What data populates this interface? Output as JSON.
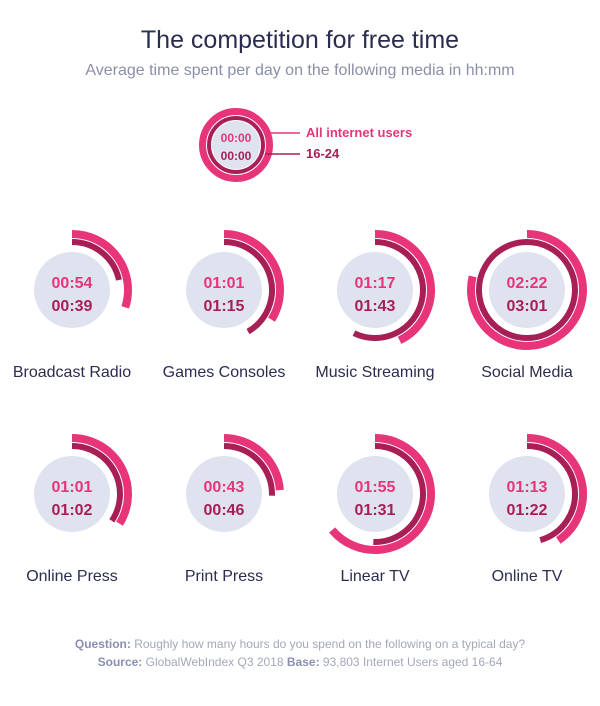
{
  "title": "The competition for free time",
  "subtitle": "Average time spent per day on the following media in hh:mm",
  "colors": {
    "all_users": "#e8357a",
    "age_16_24": "#a81f56",
    "disc": "#dfe3ef",
    "text": "#2a2d4f"
  },
  "legend": {
    "sample_top": "00:00",
    "sample_bottom": "00:00",
    "all_users_label": "All internet users",
    "age_label": "16-24"
  },
  "footer": {
    "question_label": "Question:",
    "question_text": "Roughly how many hours do you spend on the following on a typical day?",
    "source_label": "Source:",
    "source_text": "GlobalWebIndex Q3 2018",
    "base_label": "Base:",
    "base_text": "93,803 Internet Users aged 16-64"
  },
  "chart_data": {
    "type": "radial-bar",
    "full_circle_minutes": 180,
    "series": [
      {
        "name": "All internet users",
        "ring": "outer"
      },
      {
        "name": "16-24",
        "ring": "inner"
      }
    ],
    "categories": [
      {
        "name": "Broadcast Radio",
        "all": "00:54",
        "age": "00:39"
      },
      {
        "name": "Games Consoles",
        "all": "01:01",
        "age": "01:15"
      },
      {
        "name": "Music Streaming",
        "all": "01:17",
        "age": "01:43"
      },
      {
        "name": "Social Media",
        "all": "02:22",
        "age": "03:01"
      },
      {
        "name": "Online Press",
        "all": "01:01",
        "age": "01:02"
      },
      {
        "name": "Print Press",
        "all": "00:43",
        "age": "00:46"
      },
      {
        "name": "Linear TV",
        "all": "01:55",
        "age": "01:31"
      },
      {
        "name": "Online TV",
        "all": "01:13",
        "age": "01:22"
      }
    ]
  }
}
